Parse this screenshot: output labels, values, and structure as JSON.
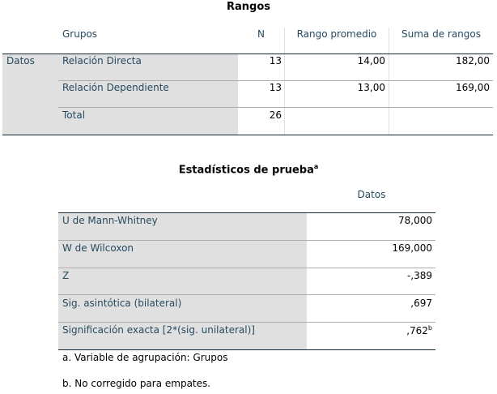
{
  "rangos": {
    "title": "Rangos",
    "headers": {
      "groups": "Grupos",
      "n": "N",
      "mean_rank": "Rango promedio",
      "rank_sum": "Suma de rangos"
    },
    "row_group_label": "Datos",
    "rows": [
      {
        "label": "Relación Directa",
        "n": "13",
        "mean_rank": "14,00",
        "rank_sum": "182,00"
      },
      {
        "label": "Relación Dependiente",
        "n": "13",
        "mean_rank": "13,00",
        "rank_sum": "169,00"
      },
      {
        "label": "Total",
        "n": "26",
        "mean_rank": "",
        "rank_sum": ""
      }
    ]
  },
  "stats": {
    "title": "Estadísticos de prueba",
    "title_sup": "a",
    "column_header": "Datos",
    "rows": [
      {
        "label": "U de Mann-Whitney",
        "value": "78,000",
        "sup": ""
      },
      {
        "label": "W de Wilcoxon",
        "value": "169,000",
        "sup": ""
      },
      {
        "label": "Z",
        "value": "-,389",
        "sup": ""
      },
      {
        "label": "Sig. asintótica (bilateral)",
        "value": ",697",
        "sup": ""
      },
      {
        "label": "Significación exacta [2*(sig. unilateral)]",
        "value": ",762",
        "sup": "b"
      }
    ],
    "footnotes": [
      "a. Variable de agrupación: Grupos",
      "b. No corregido para empates."
    ]
  }
}
